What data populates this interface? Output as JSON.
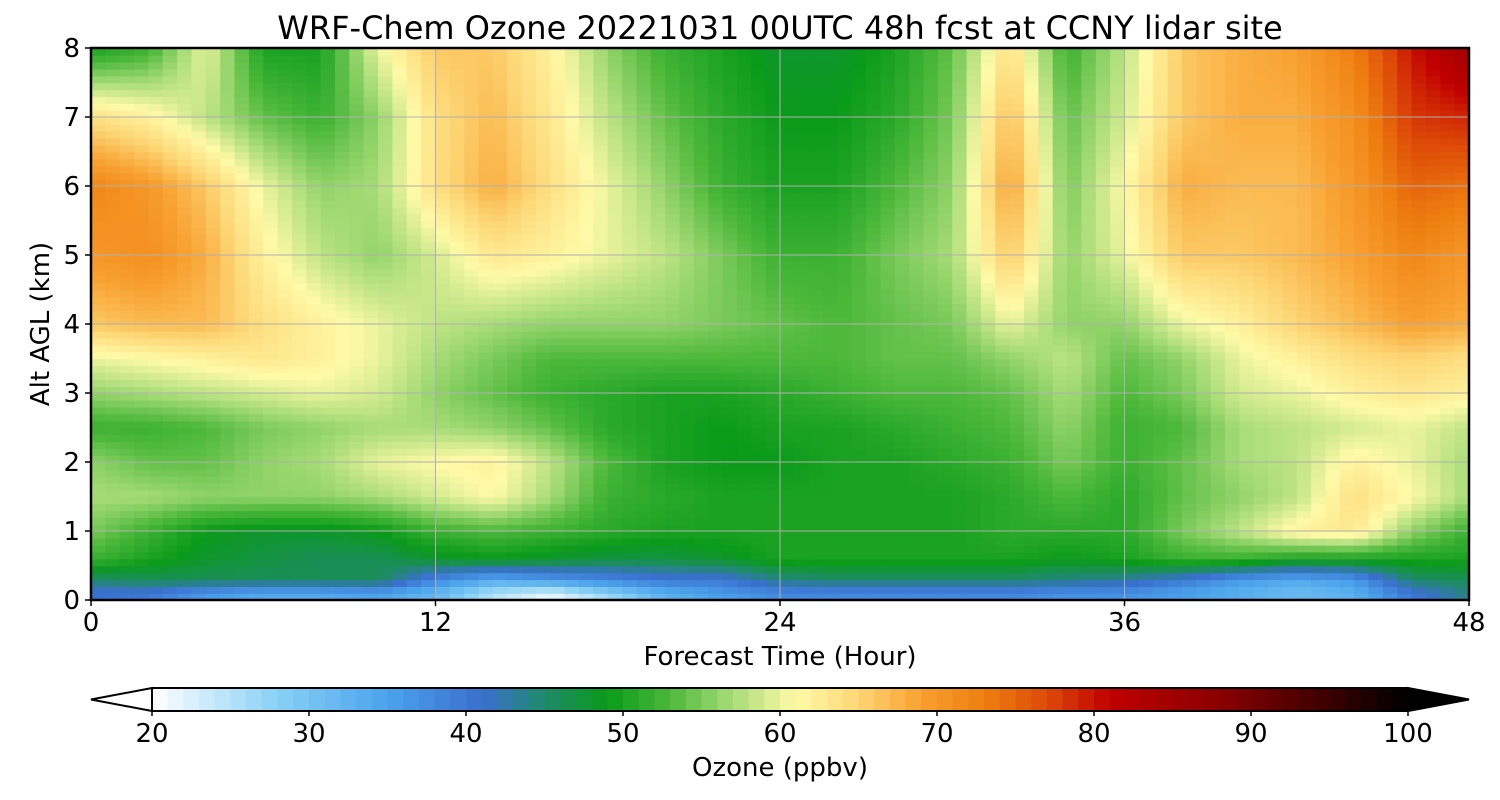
{
  "chart_data": {
    "type": "heatmap",
    "title": "WRF-Chem Ozone  20221031 00UTC 48h fcst at CCNY lidar site",
    "xlabel": "Forecast Time (Hour)",
    "ylabel": "Alt AGL (km)",
    "xlim": [
      0,
      48
    ],
    "ylim": [
      0,
      8
    ],
    "xticks": [
      "0",
      "12",
      "24",
      "36",
      "48"
    ],
    "yticks": [
      "0",
      "1",
      "2",
      "3",
      "4",
      "5",
      "6",
      "7",
      "8"
    ],
    "grid": true,
    "colorbar": {
      "label": "Ozone  (ppbv)",
      "range": [
        20,
        100
      ],
      "ticks": [
        "20",
        "30",
        "40",
        "50",
        "60",
        "70",
        "80",
        "90",
        "100"
      ],
      "extend": "both"
    },
    "x_hours": [
      0,
      2,
      4,
      6,
      8,
      10,
      12,
      14,
      16,
      18,
      20,
      22,
      24,
      26,
      28,
      30,
      32,
      34,
      36,
      38,
      40,
      42,
      44,
      46,
      48
    ],
    "z_km": [
      0,
      0.1,
      0.3,
      0.6,
      1,
      1.5,
      2,
      2.5,
      3,
      3.5,
      4,
      5,
      6,
      7,
      8
    ],
    "ozone_ppbv": [
      [
        42,
        40,
        36,
        34,
        34,
        35,
        32,
        25,
        21,
        25,
        33,
        35,
        38,
        38,
        38,
        38,
        38,
        37,
        37,
        36,
        34,
        32,
        33,
        40,
        44
      ],
      [
        40,
        40,
        36,
        34,
        34,
        35,
        32,
        25,
        22,
        28,
        33,
        36,
        38,
        38,
        38,
        38,
        38,
        37,
        37,
        35,
        33,
        31,
        33,
        40,
        44
      ],
      [
        45,
        46,
        46,
        46,
        46,
        46,
        38,
        34,
        36,
        38,
        40,
        40,
        44,
        45,
        45,
        45,
        45,
        44,
        43,
        40,
        36,
        34,
        36,
        45,
        46
      ],
      [
        52,
        50,
        48,
        47,
        46,
        46,
        48,
        49,
        48,
        47,
        47,
        48,
        50,
        50,
        50,
        50,
        50,
        49,
        50,
        52,
        52,
        50,
        50,
        50,
        50
      ],
      [
        55,
        52,
        49,
        48,
        48,
        49,
        52,
        53,
        52,
        51,
        50,
        50,
        50,
        50,
        50,
        50,
        51,
        51,
        51,
        55,
        58,
        62,
        63,
        56,
        52
      ],
      [
        57,
        57,
        56,
        56,
        56,
        57,
        59,
        61,
        57,
        52,
        51,
        50,
        50,
        50,
        50,
        50,
        51,
        53,
        51,
        54,
        56,
        58,
        64,
        61,
        57
      ],
      [
        56,
        54,
        54,
        56,
        57,
        60,
        61,
        62,
        58,
        53,
        50,
        49,
        49,
        50,
        50,
        51,
        52,
        55,
        52,
        54,
        57,
        58,
        62,
        60,
        57
      ],
      [
        52,
        52,
        53,
        55,
        56,
        57,
        57,
        56,
        54,
        51,
        50,
        49,
        50,
        50,
        51,
        52,
        53,
        56,
        52,
        53,
        57,
        58,
        59,
        60,
        58
      ],
      [
        56,
        57,
        58,
        59,
        60,
        59,
        56,
        54,
        52,
        51,
        50,
        50,
        51,
        52,
        53,
        53,
        54,
        57,
        53,
        55,
        59,
        60,
        62,
        63,
        62
      ],
      [
        60,
        61,
        62,
        63,
        62,
        60,
        57,
        55,
        53,
        53,
        53,
        53,
        53,
        53,
        54,
        54,
        56,
        58,
        54,
        56,
        60,
        62,
        64,
        65,
        64
      ],
      [
        66,
        67,
        67,
        64,
        62,
        60,
        58,
        57,
        56,
        56,
        56,
        55,
        54,
        53,
        54,
        55,
        60,
        56,
        56,
        60,
        62,
        65,
        67,
        69,
        68
      ],
      [
        70,
        71,
        68,
        62,
        58,
        56,
        59,
        63,
        62,
        60,
        58,
        55,
        52,
        52,
        55,
        57,
        66,
        56,
        60,
        66,
        66,
        67,
        69,
        72,
        70
      ],
      [
        72,
        70,
        66,
        60,
        56,
        57,
        64,
        68,
        64,
        60,
        56,
        52,
        50,
        50,
        53,
        56,
        69,
        55,
        61,
        68,
        67,
        67,
        70,
        75,
        74
      ],
      [
        64,
        62,
        58,
        54,
        52,
        56,
        64,
        67,
        63,
        58,
        54,
        51,
        49,
        49,
        51,
        55,
        67,
        54,
        59,
        66,
        68,
        68,
        71,
        78,
        79
      ],
      [
        50,
        52,
        60,
        50,
        50,
        60,
        66,
        66,
        62,
        56,
        52,
        50,
        48,
        48,
        50,
        54,
        64,
        52,
        58,
        66,
        68,
        69,
        73,
        80,
        85
      ]
    ]
  }
}
